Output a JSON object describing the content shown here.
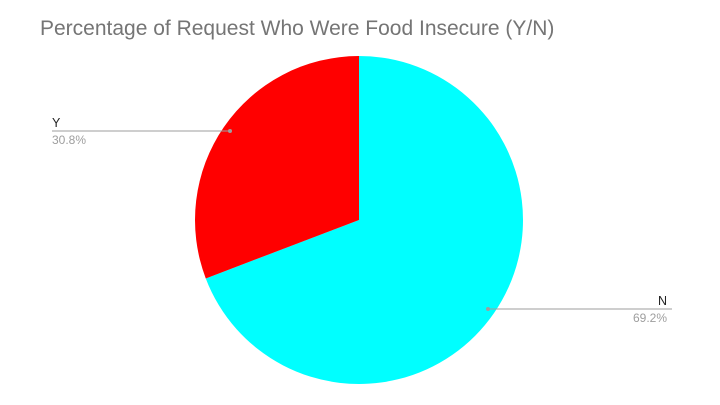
{
  "chart_data": {
    "type": "pie",
    "title": "Percentage of Request Who Were Food Insecure (Y/N)",
    "slices": [
      {
        "label": "N",
        "value": 69.2,
        "percent_label": "69.2%",
        "color": "#00FFFF"
      },
      {
        "label": "Y",
        "value": 30.8,
        "percent_label": "30.8%",
        "color": "#FF0000"
      }
    ],
    "start_angle_deg": 0,
    "direction": "clockwise",
    "labels": "outside-with-leader-lines"
  }
}
